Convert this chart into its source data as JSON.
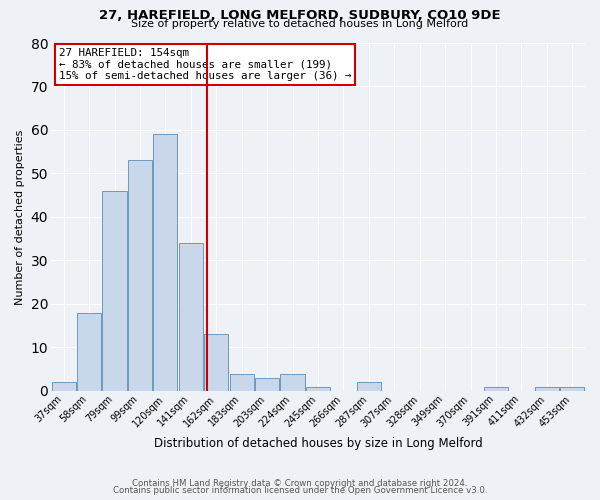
{
  "title": "27, HAREFIELD, LONG MELFORD, SUDBURY, CO10 9DE",
  "subtitle": "Size of property relative to detached houses in Long Melford",
  "xlabel": "Distribution of detached houses by size in Long Melford",
  "ylabel": "Number of detached properties",
  "bar_color": "#c8d8ea",
  "bar_edge_color": "#6a9abf",
  "background_color": "#eef2f7",
  "grid_color": "#ffffff",
  "categories": [
    "37sqm",
    "58sqm",
    "79sqm",
    "99sqm",
    "120sqm",
    "141sqm",
    "162sqm",
    "183sqm",
    "203sqm",
    "224sqm",
    "245sqm",
    "266sqm",
    "287sqm",
    "307sqm",
    "328sqm",
    "349sqm",
    "370sqm",
    "391sqm",
    "411sqm",
    "432sqm",
    "453sqm"
  ],
  "values": [
    2,
    18,
    46,
    53,
    59,
    34,
    13,
    4,
    3,
    4,
    1,
    0,
    2,
    0,
    0,
    0,
    0,
    1,
    0,
    1,
    1
  ],
  "ylim": [
    0,
    80
  ],
  "yticks": [
    0,
    10,
    20,
    30,
    40,
    50,
    60,
    70,
    80
  ],
  "vline_color": "#cc0000",
  "annotation_title": "27 HAREFIELD: 154sqm",
  "annotation_line1": "← 83% of detached houses are smaller (199)",
  "annotation_line2": "15% of semi-detached houses are larger (36) →",
  "annotation_box_color": "#ffffff",
  "annotation_box_edge_color": "#cc0000",
  "footnote1": "Contains HM Land Registry data © Crown copyright and database right 2024.",
  "footnote2": "Contains public sector information licensed under the Open Government Licence v3.0."
}
